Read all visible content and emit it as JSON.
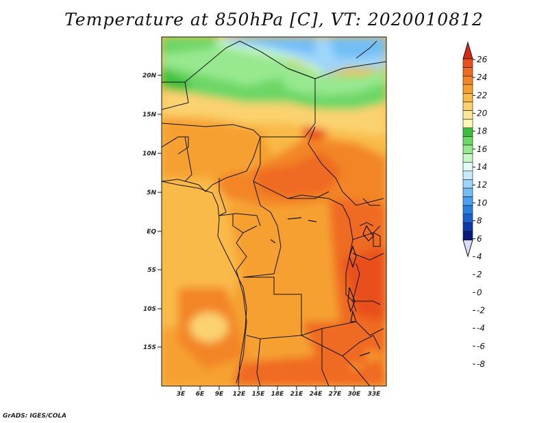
{
  "title": "Temperature at 850hPa [C], VT: 2020010812",
  "credit": "GrADS: IGES/COLA",
  "map": {
    "lat_labels": [
      "20N",
      "15N",
      "10N",
      "5N",
      "EQ",
      "5S",
      "10S",
      "15S"
    ],
    "lon_labels": [
      "3E",
      "6E",
      "9E",
      "12E",
      "15E",
      "18E",
      "21E",
      "24E",
      "27E",
      "30E",
      "33E"
    ]
  },
  "colorbar": {
    "labels": [
      "26",
      "24",
      "22",
      "20",
      "18",
      "16",
      "14",
      "12",
      "10",
      "8",
      "6",
      "4",
      "2",
      "0",
      "-2",
      "-4",
      "-6",
      "-8"
    ],
    "colors": [
      "#e8501e",
      "#ef6a22",
      "#f38526",
      "#f6a030",
      "#f9ba48",
      "#fbd270",
      "#fde898",
      "#fdf7b8",
      "#3dbf3d",
      "#6dd766",
      "#98e890",
      "#c6f6c4",
      "#e2fbf6",
      "#c8ebfc",
      "#9ed5fa",
      "#72bef6",
      "#4aa0ee",
      "#2a80e0",
      "#1a5fcc",
      "#0c3aa8",
      "#0a1a7c"
    ],
    "top_arrow_color": "#d82a12",
    "bottom_arrow_color": "#d8dcf8"
  }
}
